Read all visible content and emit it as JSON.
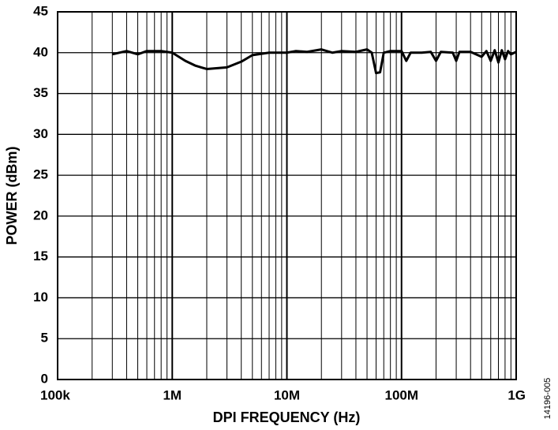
{
  "chart_data": {
    "type": "line",
    "log_x": true,
    "grid": true,
    "xlabel": "DPI FREQUENCY (Hz)",
    "ylabel": "POWER (dBm)",
    "note": "14196-005",
    "xlim": [
      100000,
      1000000000
    ],
    "ylim": [
      0,
      45
    ],
    "xticks": [
      {
        "value": 100000,
        "label": "100k"
      },
      {
        "value": 1000000,
        "label": "1M"
      },
      {
        "value": 10000000,
        "label": "10M"
      },
      {
        "value": 100000000,
        "label": "100M"
      },
      {
        "value": 1000000000,
        "label": "1G"
      }
    ],
    "x_minor_ticks": [
      200000,
      300000,
      400000,
      500000,
      600000,
      700000,
      800000,
      900000,
      2000000,
      3000000,
      4000000,
      5000000,
      6000000,
      7000000,
      8000000,
      9000000,
      20000000,
      30000000,
      40000000,
      50000000,
      60000000,
      70000000,
      80000000,
      90000000,
      200000000,
      300000000,
      400000000,
      500000000,
      600000000,
      700000000,
      800000000,
      900000000
    ],
    "yticks": [
      0,
      5,
      10,
      15,
      20,
      25,
      30,
      35,
      40,
      45
    ],
    "x": [
      300000,
      400000,
      500000,
      600000,
      800000,
      1000000,
      1300000,
      1600000,
      2000000,
      3000000,
      4000000,
      5000000,
      7000000,
      10000000,
      12000000,
      15000000,
      20000000,
      25000000,
      30000000,
      40000000,
      50000000,
      55000000,
      60000000,
      65000000,
      70000000,
      80000000,
      100000000,
      110000000,
      120000000,
      150000000,
      180000000,
      200000000,
      220000000,
      280000000,
      300000000,
      320000000,
      400000000,
      500000000,
      550000000,
      600000000,
      650000000,
      700000000,
      750000000,
      800000000,
      850000000,
      900000000,
      1000000000
    ],
    "series": [
      {
        "color": "#000000",
        "values": [
          39.8,
          40.2,
          39.8,
          40.2,
          40.2,
          40.0,
          39.0,
          38.4,
          38.0,
          38.2,
          38.9,
          39.7,
          40.0,
          40.0,
          40.2,
          40.1,
          40.4,
          40.0,
          40.2,
          40.1,
          40.4,
          40.0,
          37.5,
          37.6,
          40.0,
          40.2,
          40.2,
          39.0,
          40.0,
          40.0,
          40.1,
          39.0,
          40.1,
          40.0,
          39.0,
          40.1,
          40.1,
          39.5,
          40.2,
          39.0,
          40.3,
          38.8,
          40.3,
          39.2,
          40.2,
          39.8,
          40.1
        ]
      }
    ]
  }
}
